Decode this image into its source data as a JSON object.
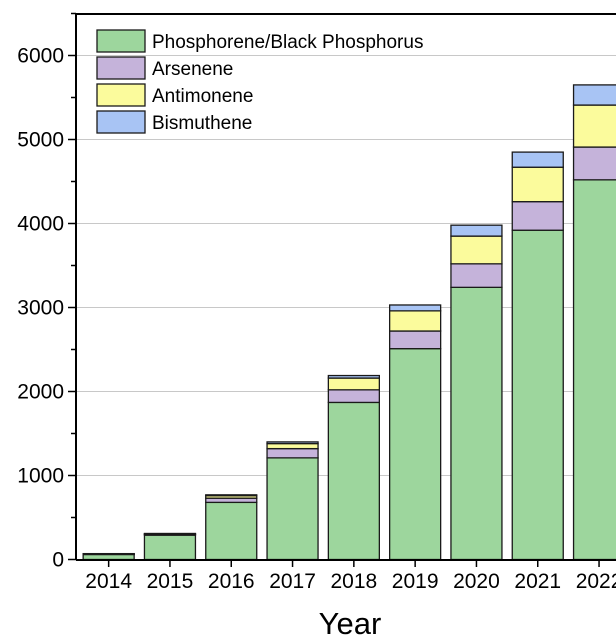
{
  "chart_data": {
    "type": "bar",
    "stacked": true,
    "title": "",
    "xlabel": "Year",
    "ylabel": "",
    "categories": [
      "2014",
      "2015",
      "2016",
      "2017",
      "2018",
      "2019",
      "2020",
      "2021",
      "2022"
    ],
    "ylim": [
      0,
      6500
    ],
    "yticks": [
      0,
      1000,
      2000,
      3000,
      4000,
      5000,
      6000
    ],
    "grid": "horizontal",
    "legend_position": "top-left",
    "series": [
      {
        "name": "Phosphorene/Black Phosphorus",
        "color": "#9dd69d",
        "values": [
          60,
          290,
          680,
          1210,
          1870,
          2510,
          3240,
          3920,
          4520
        ]
      },
      {
        "name": "Arsenene",
        "color": "#c5b3da",
        "values": [
          5,
          10,
          50,
          110,
          150,
          210,
          280,
          340,
          390
        ]
      },
      {
        "name": "Antimonene",
        "color": "#fbfb9c",
        "values": [
          3,
          6,
          30,
          60,
          140,
          240,
          330,
          410,
          500
        ]
      },
      {
        "name": "Bismuthene",
        "color": "#a8c4f4",
        "values": [
          2,
          4,
          10,
          20,
          30,
          70,
          130,
          180,
          240
        ]
      }
    ]
  }
}
